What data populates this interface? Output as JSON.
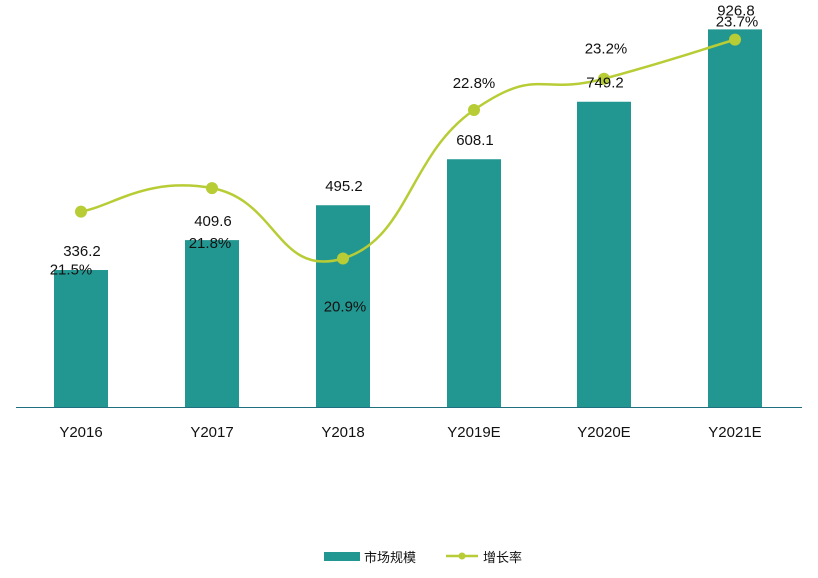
{
  "chart_data": {
    "type": "bar",
    "categories": [
      "Y2016",
      "Y2017",
      "Y2018",
      "Y2019E",
      "Y2020E",
      "Y2021E"
    ],
    "series": [
      {
        "name": "市场规模",
        "type": "bar",
        "axis": "left",
        "values": [
          336.2,
          409.6,
          495.2,
          608.1,
          749.2,
          926.8
        ],
        "labels": [
          "336.2",
          "409.6",
          "495.2",
          "608.1",
          "749.2",
          "926.8"
        ]
      },
      {
        "name": "增长率",
        "type": "line",
        "axis": "right",
        "values": [
          21.5,
          21.8,
          20.9,
          22.8,
          23.2,
          23.7
        ],
        "labels": [
          "21.5%",
          "21.8%",
          "20.9%",
          "22.8%",
          "23.2%",
          "23.7%"
        ]
      }
    ],
    "ylim": [
      0,
      940
    ],
    "y2lim": [
      19.0,
      23.9
    ],
    "grid": false,
    "legend_position": "bottom-center",
    "colors": {
      "bar": "#229791",
      "line": "#b8cc35",
      "axis": "#1f6f7f"
    }
  }
}
